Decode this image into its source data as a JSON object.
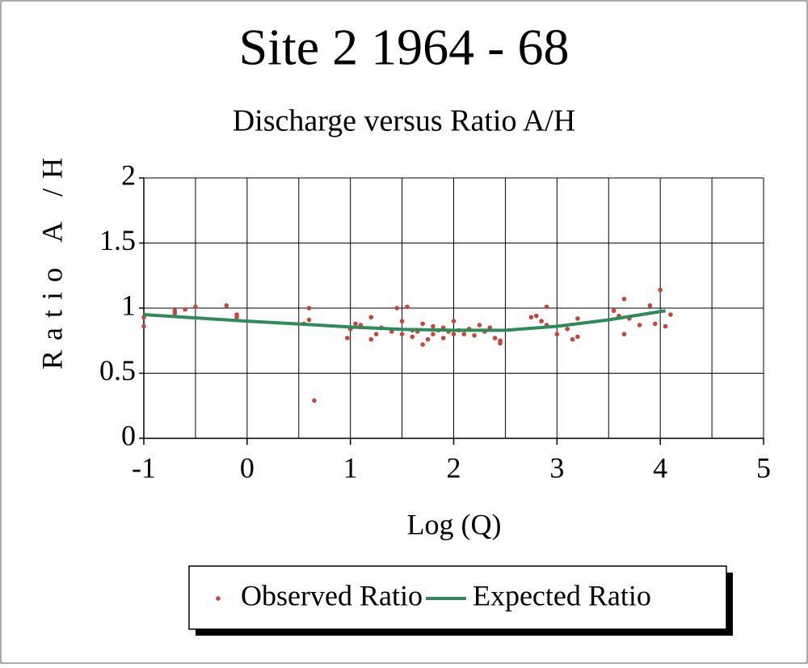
{
  "chart_data": {
    "type": "scatter",
    "title": "Site 2 1964 - 68",
    "subtitle": "Discharge versus Ratio A/H",
    "x_label": "Log (Q)",
    "y_label": "Ratio A /H",
    "xlim": [
      -1,
      5
    ],
    "ylim": [
      0,
      2
    ],
    "xticks": [
      -1,
      0,
      1,
      2,
      3,
      4,
      5
    ],
    "yticks": [
      0,
      0.5,
      1,
      1.5,
      2
    ],
    "xgrid": [
      -1,
      -0.5,
      0,
      0.5,
      1,
      1.5,
      2,
      2.5,
      3,
      3.5,
      4,
      4.5,
      5
    ],
    "grid": true,
    "legend": "bottom",
    "series": [
      {
        "name": "Observed Ratio",
        "type": "scatter",
        "color": "#c4473d",
        "x": [
          -1.0,
          -1.0,
          -0.7,
          -0.7,
          -0.6,
          -0.5,
          -0.2,
          -0.1,
          -0.1,
          0.55,
          0.6,
          0.6,
          0.65,
          0.97,
          1.0,
          1.05,
          1.1,
          1.2,
          1.2,
          1.25,
          1.3,
          1.4,
          1.45,
          1.5,
          1.5,
          1.55,
          1.6,
          1.6,
          1.65,
          1.7,
          1.7,
          1.75,
          1.8,
          1.8,
          1.85,
          1.9,
          1.9,
          1.95,
          2.0,
          2.0,
          2.05,
          2.1,
          2.15,
          2.2,
          2.25,
          2.3,
          2.35,
          2.4,
          2.45,
          2.45,
          2.75,
          2.8,
          2.85,
          2.9,
          2.9,
          3.0,
          3.1,
          3.15,
          3.2,
          3.2,
          3.55,
          3.6,
          3.65,
          3.65,
          3.7,
          3.8,
          3.9,
          3.95,
          4.0,
          4.05,
          4.1
        ],
        "values": [
          0.93,
          0.86,
          0.98,
          0.96,
          0.99,
          1.01,
          1.02,
          0.95,
          0.93,
          0.88,
          0.91,
          1.0,
          0.29,
          0.77,
          0.84,
          0.88,
          0.87,
          0.76,
          0.93,
          0.8,
          0.85,
          0.82,
          1.0,
          0.9,
          0.8,
          1.01,
          0.83,
          0.78,
          0.82,
          0.72,
          0.88,
          0.76,
          0.86,
          0.8,
          0.83,
          0.85,
          0.77,
          0.82,
          0.8,
          0.9,
          0.83,
          0.8,
          0.84,
          0.79,
          0.87,
          0.82,
          0.85,
          0.77,
          0.73,
          0.75,
          0.93,
          0.94,
          0.9,
          1.01,
          0.87,
          0.8,
          0.84,
          0.76,
          0.78,
          0.92,
          0.98,
          0.94,
          1.07,
          0.8,
          0.92,
          0.87,
          1.02,
          0.88,
          1.14,
          0.86,
          0.95
        ]
      },
      {
        "name": "Expected Ratio",
        "type": "line",
        "color": "#2e8b57",
        "x": [
          -1.0,
          -0.5,
          0.0,
          0.5,
          1.0,
          1.5,
          2.0,
          2.5,
          3.0,
          3.5,
          4.05
        ],
        "values": [
          0.95,
          0.925,
          0.9,
          0.878,
          0.855,
          0.837,
          0.83,
          0.83,
          0.86,
          0.91,
          0.98
        ]
      }
    ]
  }
}
